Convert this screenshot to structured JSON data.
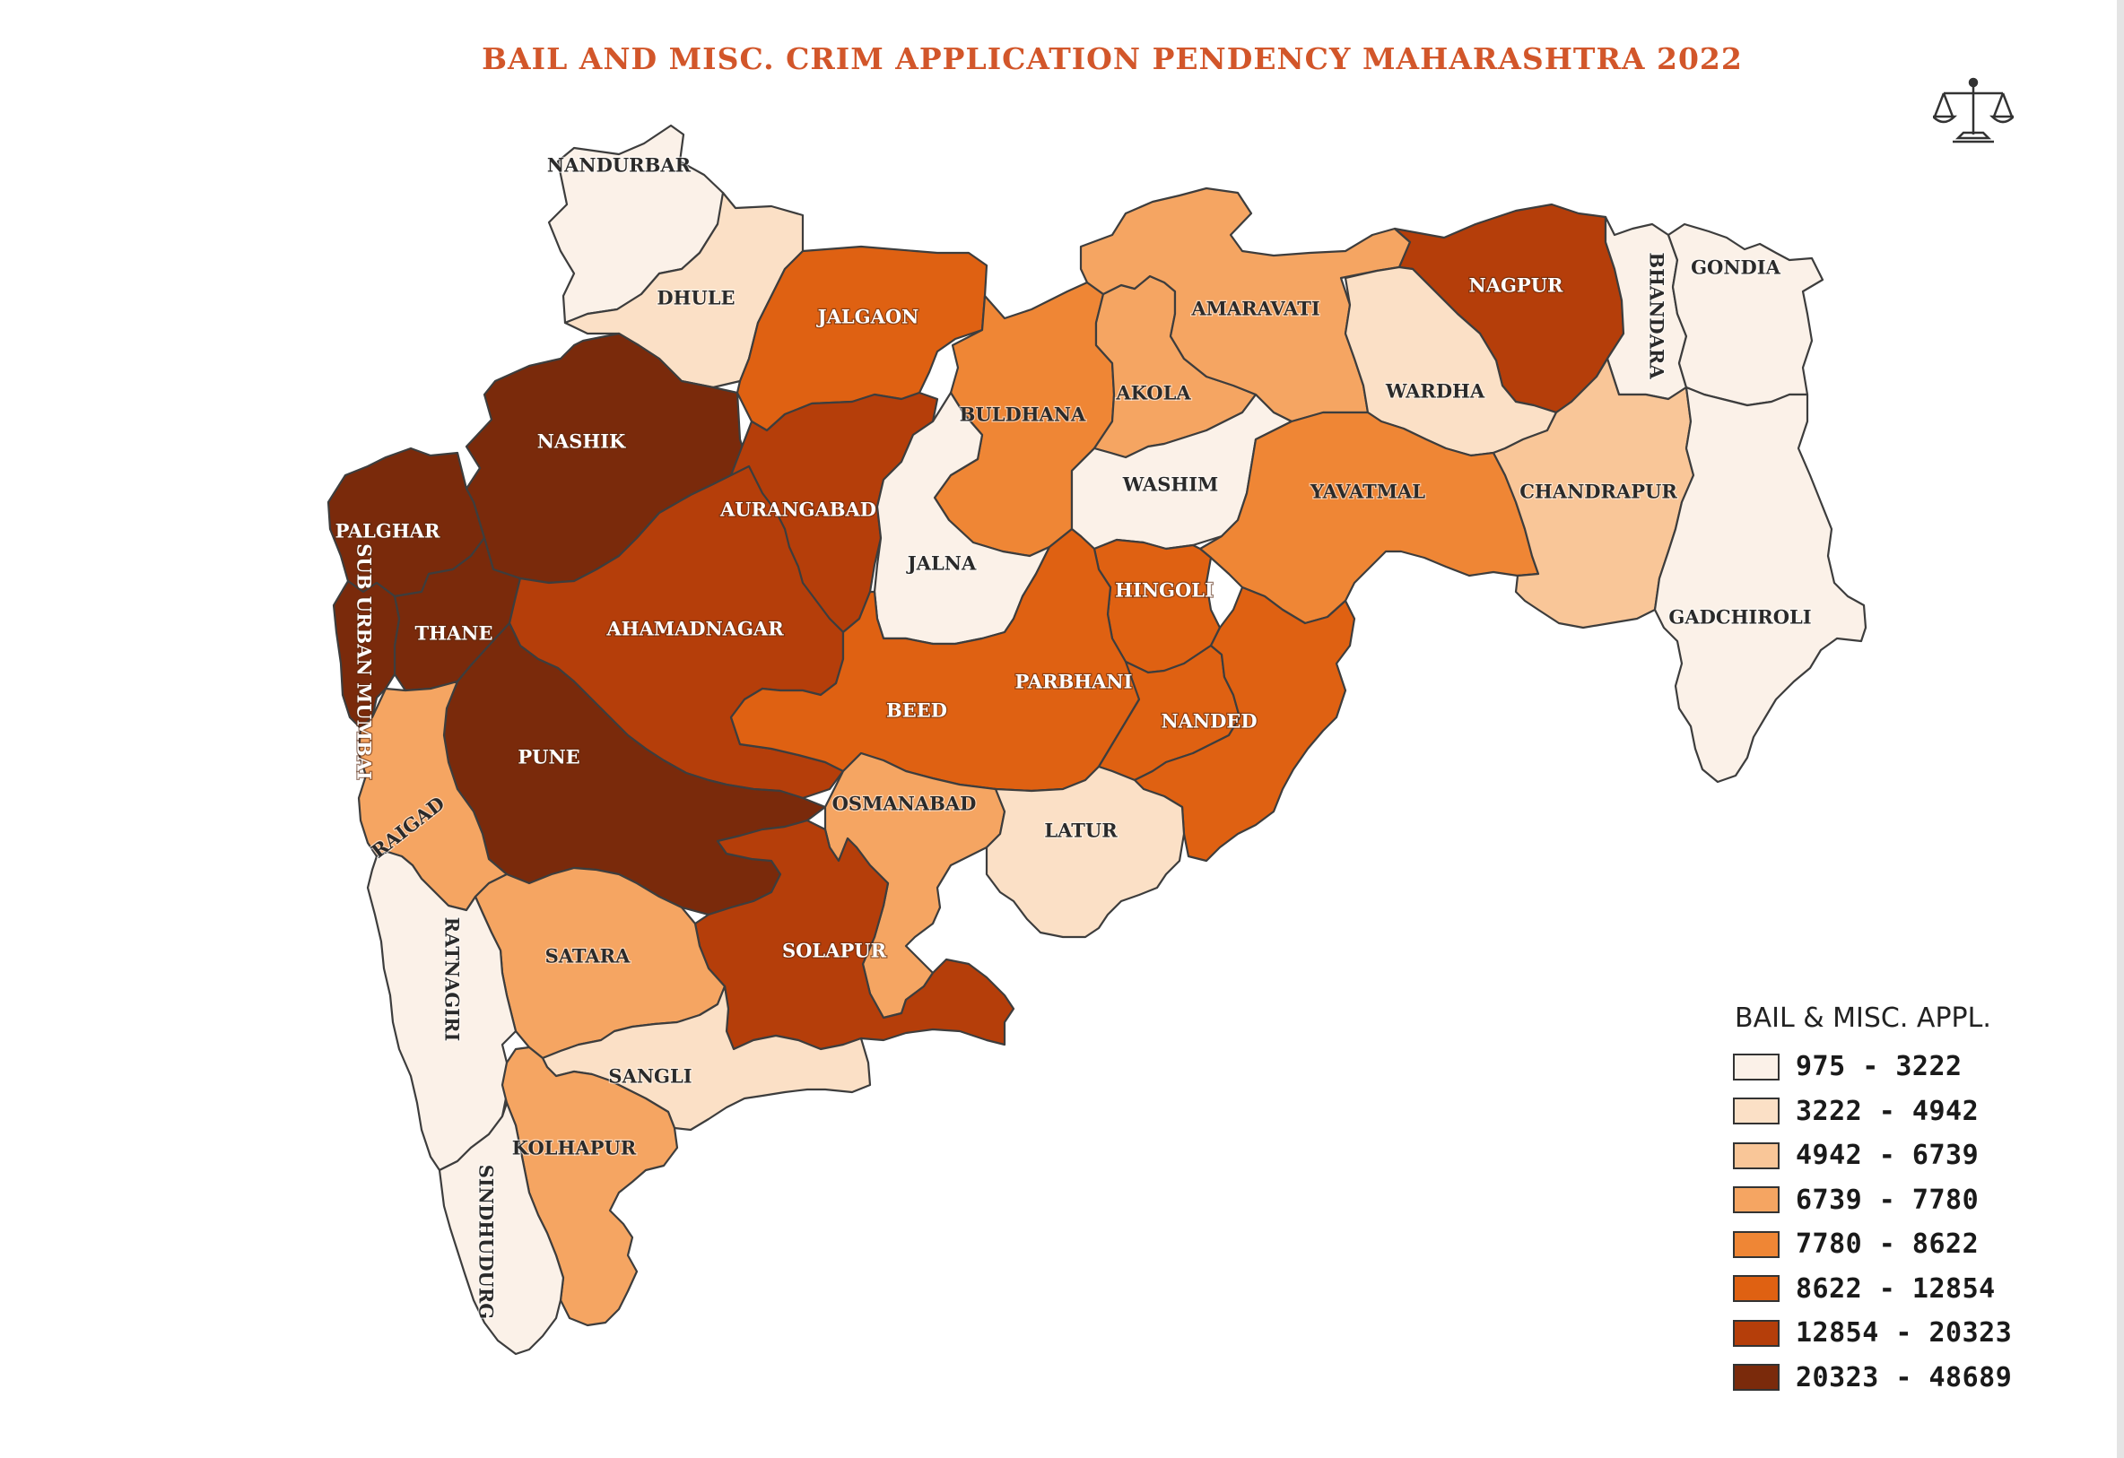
{
  "title": "BAIL AND MISC. CRIM APPLICATION PENDENCY MAHARASHTRA 2022",
  "icon": "scales-of-justice-icon",
  "legend": {
    "title": "BAIL & MISC. APPL.",
    "classes": [
      {
        "range": "975 - 3222",
        "color": "#fbf1e8"
      },
      {
        "range": "3222 - 4942",
        "color": "#fbe0c6"
      },
      {
        "range": "4942 - 6739",
        "color": "#f9c698"
      },
      {
        "range": "6739 - 7780",
        "color": "#f5a562"
      },
      {
        "range": "7780 - 8622",
        "color": "#ef8635"
      },
      {
        "range": "8622 - 12854",
        "color": "#df6112"
      },
      {
        "range": "12854 - 20323",
        "color": "#b53e0a"
      },
      {
        "range": "20323 - 48689",
        "color": "#7a2a0b"
      }
    ]
  },
  "districts": [
    {
      "name": "NANDURBAR",
      "class": 0
    },
    {
      "name": "DHULE",
      "class": 1
    },
    {
      "name": "JALGAON",
      "class": 5
    },
    {
      "name": "NASHIK",
      "class": 7
    },
    {
      "name": "PALGHAR",
      "class": 7
    },
    {
      "name": "THANE",
      "class": 7
    },
    {
      "name": "SUB URBAN MUMBAI",
      "class": 7
    },
    {
      "name": "AURANGABAD",
      "class": 6
    },
    {
      "name": "BULDHANA",
      "class": 4
    },
    {
      "name": "AKOLA",
      "class": 3
    },
    {
      "name": "AMARAVATI",
      "class": 3
    },
    {
      "name": "NAGPUR",
      "class": 6
    },
    {
      "name": "BHANDARA",
      "class": 0
    },
    {
      "name": "GONDIA",
      "class": 0
    },
    {
      "name": "WARDHA",
      "class": 1
    },
    {
      "name": "WASHIM",
      "class": 0
    },
    {
      "name": "JALNA",
      "class": 0
    },
    {
      "name": "YAVATMAL",
      "class": 4
    },
    {
      "name": "CHANDRAPUR",
      "class": 2
    },
    {
      "name": "GADCHIROLI",
      "class": 0
    },
    {
      "name": "HINGOLI",
      "class": 5
    },
    {
      "name": "AHAMADNAGAR",
      "class": 6
    },
    {
      "name": "BEED",
      "class": 5
    },
    {
      "name": "PARBHANI",
      "class": 5
    },
    {
      "name": "NANDED",
      "class": 5
    },
    {
      "name": "PUNE",
      "class": 7
    },
    {
      "name": "RAIGAD",
      "class": 3
    },
    {
      "name": "OSMANABAD",
      "class": 3
    },
    {
      "name": "LATUR",
      "class": 1
    },
    {
      "name": "SOLAPUR",
      "class": 6
    },
    {
      "name": "SATARA",
      "class": 3
    },
    {
      "name": "RATNAGIRI",
      "class": 0
    },
    {
      "name": "SANGLI",
      "class": 1
    },
    {
      "name": "KOLHAPUR",
      "class": 3
    },
    {
      "name": "SINDHUDURG",
      "class": 0
    }
  ]
}
